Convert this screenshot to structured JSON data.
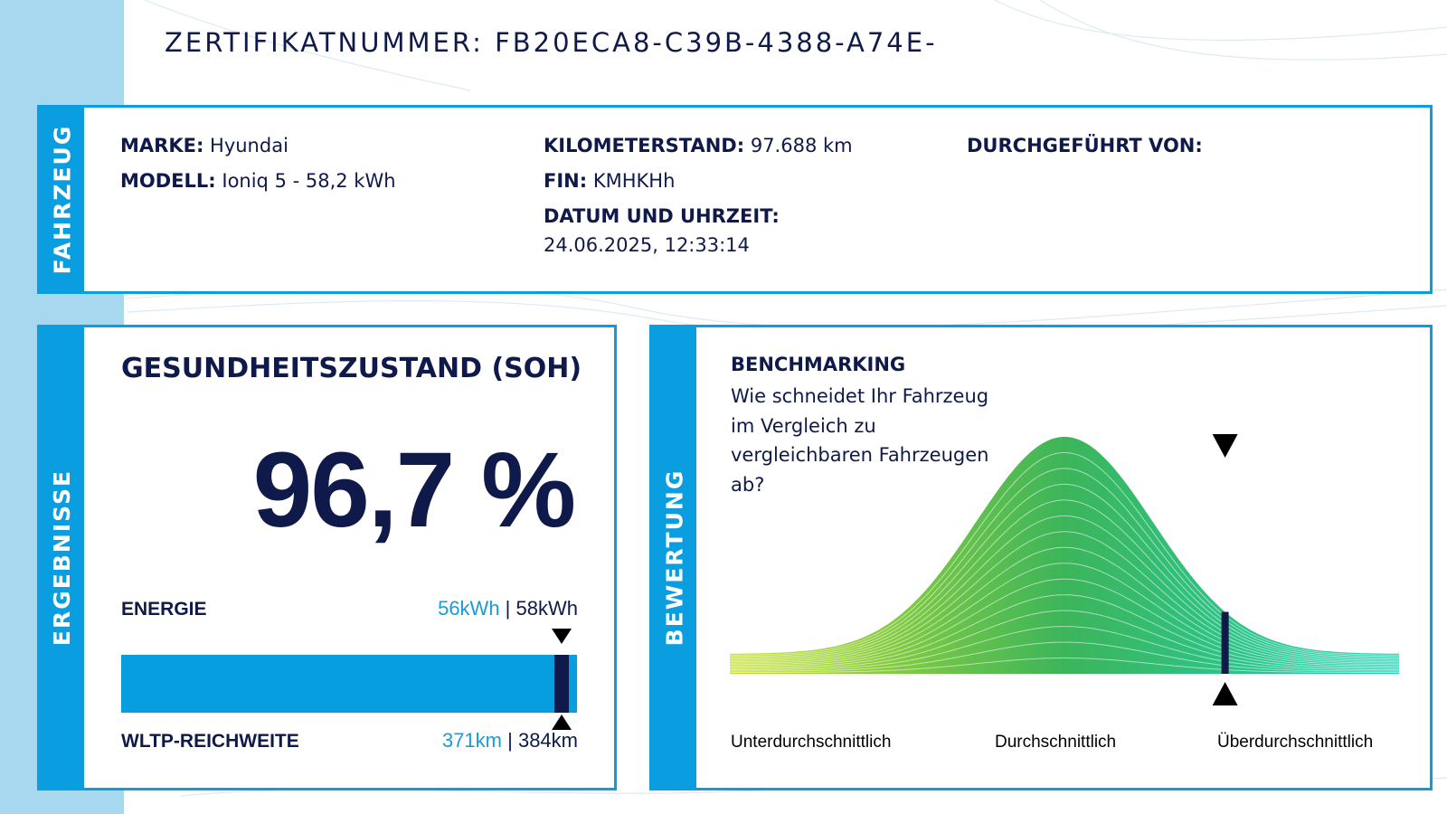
{
  "certificate": {
    "label": "ZERTIFIKATNUMMER: FB20ECA8-C39B-4388-A74E-"
  },
  "vehicle": {
    "tab_label": "FAHRZEUG",
    "brand_label": "MARKE:",
    "brand_value": "Hyundai",
    "model_label": "MODELL:",
    "model_value": "Ioniq 5 - 58,2 kWh",
    "mileage_label": "KILOMETERSTAND:",
    "mileage_value": "97.688 km",
    "vin_label": "FIN:",
    "vin_value": "KMHKHh",
    "datetime_label": "DATUM UND UHRZEIT:",
    "datetime_value": "24.06.2025, 12:33:14",
    "performed_by_label": "DURCHGEFÜHRT VON:"
  },
  "results": {
    "tab_label": "ERGEBNISSE",
    "soh_title": "GESUNDHEITSZUSTAND (SOH)",
    "soh_value": "96,7 %",
    "energy_label": "ENERGIE",
    "energy_current": "56kWh",
    "energy_separator": " | ",
    "energy_nominal": "58kWh",
    "range_label": "WLTP-REICHWEITE",
    "range_current": "371km",
    "range_separator": " | ",
    "range_nominal": "384km",
    "bar_level": 0.967
  },
  "benchmark": {
    "tab_label": "BEWERTUNG",
    "title": "BENCHMARKING",
    "question": "Wie schneidet Ihr Fahrzeug im Vergleich zu vergleichbaren Fahrzeugen ab?",
    "axis_low": "Unterdurchschnittlich",
    "axis_mid": "Durchschnittlich",
    "axis_high": "Überdurchschnittlich",
    "marker_position": 0.74
  },
  "colors": {
    "accent": "#0a9ee0",
    "navy": "#0f1a4a",
    "light_stripe": "#a8d8f0",
    "curve_left": "#c6e02a",
    "curve_mid": "#3cb55a",
    "curve_right": "#1ed2b4"
  }
}
